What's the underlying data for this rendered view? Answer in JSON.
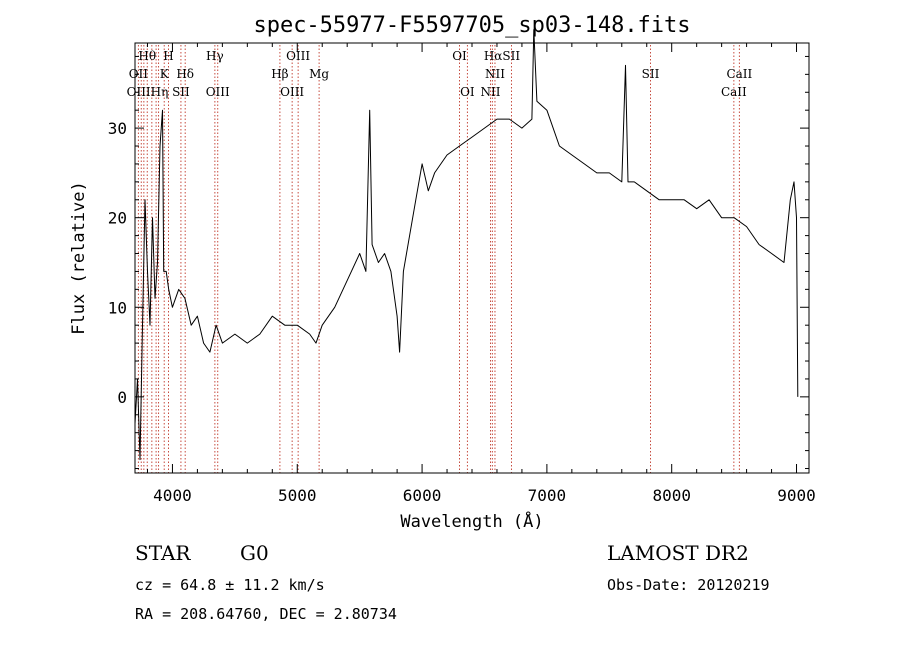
{
  "chart_data": {
    "type": "line",
    "title": "spec-55977-F5597705_sp03-148.fits",
    "xlabel": "Wavelength (Å)",
    "ylabel": "Flux (relative)",
    "xlim": [
      3700,
      9100
    ],
    "ylim": [
      -8.5,
      39.5
    ],
    "x_ticks": [
      4000,
      5000,
      6000,
      7000,
      8000,
      9000
    ],
    "y_ticks": [
      0,
      10,
      20,
      30
    ],
    "grid": false,
    "legend": "none",
    "series": [
      {
        "x": [
          3700,
          3720,
          3740,
          3760,
          3780,
          3800,
          3820,
          3840,
          3860,
          3880,
          3900,
          3920,
          3930,
          3950,
          3970,
          4000,
          4050,
          4100,
          4150,
          4200,
          4250,
          4300,
          4350,
          4400,
          4500,
          4600,
          4700,
          4800,
          4900,
          5000,
          5100,
          5150,
          5200,
          5300,
          5400,
          5500,
          5550,
          5580,
          5600,
          5650,
          5700,
          5750,
          5800,
          5820,
          5850,
          5900,
          5950,
          6000,
          6050,
          6100,
          6200,
          6300,
          6400,
          6500,
          6600,
          6700,
          6800,
          6880,
          6895,
          6920,
          7000,
          7100,
          7200,
          7300,
          7400,
          7500,
          7600,
          7630,
          7650,
          7700,
          7800,
          7900,
          8000,
          8100,
          8200,
          8300,
          8400,
          8500,
          8600,
          8700,
          8800,
          8900,
          8950,
          8980,
          9000,
          9010
        ],
        "y": [
          -3,
          2,
          -7,
          8,
          22,
          14,
          8,
          20,
          11,
          15,
          28,
          32,
          14,
          14,
          12,
          10,
          12,
          11,
          8,
          9,
          6,
          5,
          8,
          6,
          7,
          6,
          7,
          9,
          8,
          8,
          7,
          6,
          8,
          10,
          13,
          16,
          14,
          32,
          17,
          15,
          16,
          14,
          9,
          5,
          14,
          18,
          22,
          26,
          23,
          25,
          27,
          28,
          29,
          30,
          31,
          31,
          30,
          31,
          41,
          33,
          32,
          28,
          27,
          26,
          25,
          25,
          24,
          37,
          24,
          24,
          23,
          22,
          22,
          22,
          21,
          22,
          20,
          20,
          19,
          17,
          16,
          15,
          22,
          24,
          20,
          0
        ]
      }
    ],
    "line_markers": {
      "top": [
        {
          "label": "Hθ",
          "x": 3798,
          "row": 0
        },
        {
          "label": "H",
          "x": 3968,
          "row": 0
        },
        {
          "label": "Hγ",
          "x": 4340,
          "row": 0
        },
        {
          "label": "OIII",
          "x": 5007,
          "row": 0
        },
        {
          "label": "OI",
          "x": 6300,
          "row": 0
        },
        {
          "label": "HαSII",
          "x": 6640,
          "row": 0
        },
        {
          "label": "OII",
          "x": 3727,
          "row": 1
        },
        {
          "label": "K",
          "x": 3934,
          "row": 1
        },
        {
          "label": "Hδ",
          "x": 4102,
          "row": 1
        },
        {
          "label": "Hβ",
          "x": 4861,
          "row": 1
        },
        {
          "label": "Mg",
          "x": 5175,
          "row": 1
        },
        {
          "label": "NII",
          "x": 6584,
          "row": 1
        },
        {
          "label": "SII",
          "x": 7830,
          "row": 1
        },
        {
          "label": "CaII",
          "x": 8542,
          "row": 1
        },
        {
          "label": "OIIIHη",
          "x": 3800,
          "row": 2
        },
        {
          "label": "SII",
          "x": 4068,
          "row": 2
        },
        {
          "label": "OIII",
          "x": 4363,
          "row": 2
        },
        {
          "label": "OIII",
          "x": 4959,
          "row": 2
        },
        {
          "label": "OI",
          "x": 6363,
          "row": 2
        },
        {
          "label": "NII",
          "x": 6548,
          "row": 2
        },
        {
          "label": "CaII",
          "x": 8498,
          "row": 2
        }
      ],
      "dotted_x": [
        3727,
        3750,
        3771,
        3798,
        3835,
        3869,
        3889,
        3934,
        3968,
        4068,
        4102,
        4340,
        4363,
        4861,
        4959,
        5007,
        5175,
        6300,
        6363,
        6548,
        6563,
        6584,
        6716,
        7830,
        8498,
        8542
      ]
    }
  },
  "footer": {
    "object_type": "STAR",
    "subclass": "G0",
    "survey": "LAMOST DR2",
    "redshift": "cz = 64.8 ± 11.2 km/s",
    "obs_date": "Obs-Date: 20120219",
    "coordinates": "RA = 208.64760, DEC =   2.80734"
  }
}
